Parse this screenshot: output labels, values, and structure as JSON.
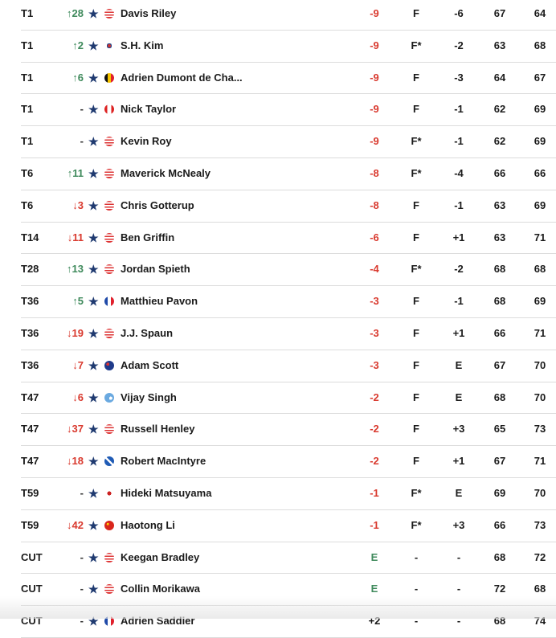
{
  "colors": {
    "up": "#3f8a5c",
    "down": "#d93a2f",
    "under_par": "#d93a2f",
    "even": "#3f8a5c",
    "star": "#1f3a70"
  },
  "players": [
    {
      "pos": "T1",
      "move": "↑28",
      "dir": "up",
      "flag": "USA",
      "name": "Davis Riley",
      "total": "-9",
      "thru": "F",
      "today": "-6",
      "r1": "67",
      "r2": "64"
    },
    {
      "pos": "T1",
      "move": "↑2",
      "dir": "up",
      "flag": "KOR",
      "name": "S.H. Kim",
      "total": "-9",
      "thru": "F*",
      "today": "-2",
      "r1": "63",
      "r2": "68"
    },
    {
      "pos": "T1",
      "move": "↑6",
      "dir": "up",
      "flag": "BEL",
      "name": "Adrien Dumont de Cha...",
      "total": "-9",
      "thru": "F",
      "today": "-3",
      "r1": "64",
      "r2": "67"
    },
    {
      "pos": "T1",
      "move": "-",
      "dir": "none",
      "flag": "CAN",
      "name": "Nick Taylor",
      "total": "-9",
      "thru": "F",
      "today": "-1",
      "r1": "62",
      "r2": "69"
    },
    {
      "pos": "T1",
      "move": "-",
      "dir": "none",
      "flag": "USA",
      "name": "Kevin Roy",
      "total": "-9",
      "thru": "F*",
      "today": "-1",
      "r1": "62",
      "r2": "69"
    },
    {
      "pos": "T6",
      "move": "↑11",
      "dir": "up",
      "flag": "USA",
      "name": "Maverick McNealy",
      "total": "-8",
      "thru": "F*",
      "today": "-4",
      "r1": "66",
      "r2": "66"
    },
    {
      "pos": "T6",
      "move": "↓3",
      "dir": "down",
      "flag": "USA",
      "name": "Chris Gotterup",
      "total": "-8",
      "thru": "F",
      "today": "-1",
      "r1": "63",
      "r2": "69"
    },
    {
      "pos": "T14",
      "move": "↓11",
      "dir": "down",
      "flag": "USA",
      "name": "Ben Griffin",
      "total": "-6",
      "thru": "F",
      "today": "+1",
      "r1": "63",
      "r2": "71"
    },
    {
      "pos": "T28",
      "move": "↑13",
      "dir": "up",
      "flag": "USA",
      "name": "Jordan Spieth",
      "total": "-4",
      "thru": "F*",
      "today": "-2",
      "r1": "68",
      "r2": "68"
    },
    {
      "pos": "T36",
      "move": "↑5",
      "dir": "up",
      "flag": "FRA",
      "name": "Matthieu Pavon",
      "total": "-3",
      "thru": "F",
      "today": "-1",
      "r1": "68",
      "r2": "69"
    },
    {
      "pos": "T36",
      "move": "↓19",
      "dir": "down",
      "flag": "USA",
      "name": "J.J. Spaun",
      "total": "-3",
      "thru": "F",
      "today": "+1",
      "r1": "66",
      "r2": "71"
    },
    {
      "pos": "T36",
      "move": "↓7",
      "dir": "down",
      "flag": "AUS",
      "name": "Adam Scott",
      "total": "-3",
      "thru": "F",
      "today": "E",
      "r1": "67",
      "r2": "70"
    },
    {
      "pos": "T47",
      "move": "↓6",
      "dir": "down",
      "flag": "FIJ",
      "name": "Vijay Singh",
      "total": "-2",
      "thru": "F",
      "today": "E",
      "r1": "68",
      "r2": "70"
    },
    {
      "pos": "T47",
      "move": "↓37",
      "dir": "down",
      "flag": "USA",
      "name": "Russell Henley",
      "total": "-2",
      "thru": "F",
      "today": "+3",
      "r1": "65",
      "r2": "73"
    },
    {
      "pos": "T47",
      "move": "↓18",
      "dir": "down",
      "flag": "SCO",
      "name": "Robert MacIntyre",
      "total": "-2",
      "thru": "F",
      "today": "+1",
      "r1": "67",
      "r2": "71"
    },
    {
      "pos": "T59",
      "move": "-",
      "dir": "none",
      "flag": "JPN",
      "name": "Hideki Matsuyama",
      "total": "-1",
      "thru": "F*",
      "today": "E",
      "r1": "69",
      "r2": "70"
    },
    {
      "pos": "T59",
      "move": "↓42",
      "dir": "down",
      "flag": "CHN",
      "name": "Haotong Li",
      "total": "-1",
      "thru": "F*",
      "today": "+3",
      "r1": "66",
      "r2": "73"
    },
    {
      "pos": "CUT",
      "move": "-",
      "dir": "none",
      "flag": "USA",
      "name": "Keegan Bradley",
      "total": "E",
      "thru": "-",
      "today": "-",
      "r1": "68",
      "r2": "72"
    },
    {
      "pos": "CUT",
      "move": "-",
      "dir": "none",
      "flag": "USA",
      "name": "Collin Morikawa",
      "total": "E",
      "thru": "-",
      "today": "-",
      "r1": "72",
      "r2": "68"
    },
    {
      "pos": "CUT",
      "move": "-",
      "dir": "none",
      "flag": "FRA",
      "name": "Adrien Saddier",
      "total": "+2",
      "thru": "-",
      "today": "-",
      "r1": "68",
      "r2": "74"
    }
  ]
}
